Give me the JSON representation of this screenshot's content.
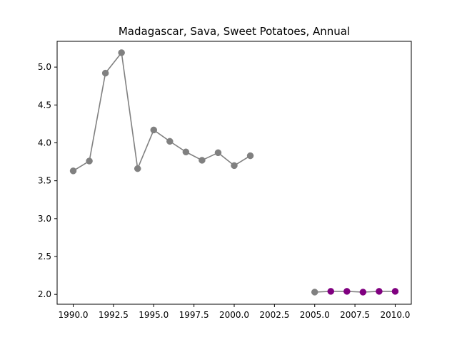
{
  "chart_data": {
    "type": "line",
    "title": "Madagascar, Sava, Sweet Potatoes, Annual",
    "xlabel": "",
    "ylabel": "",
    "xlim": [
      1989.0,
      2011.0
    ],
    "ylim": [
      1.87,
      5.34
    ],
    "xticks": [
      1990.0,
      1992.5,
      1995.0,
      1997.5,
      2000.0,
      2002.5,
      2005.0,
      2007.5,
      2010.0
    ],
    "xtick_labels": [
      "1990.0",
      "1992.5",
      "1995.0",
      "1997.5",
      "2000.0",
      "2002.5",
      "2005.0",
      "2007.5",
      "2010.0"
    ],
    "yticks": [
      2.0,
      2.5,
      3.0,
      3.5,
      4.0,
      4.5,
      5.0
    ],
    "ytick_labels": [
      "2.0",
      "2.5",
      "3.0",
      "3.5",
      "4.0",
      "4.5",
      "5.0"
    ],
    "grid": false,
    "line_color": "#808080",
    "series": [
      {
        "segments": [
          {
            "x": [
              1990,
              1991,
              1992,
              1993,
              1994,
              1995,
              1996,
              1997,
              1998,
              1999,
              2000,
              2001
            ],
            "y": [
              3.63,
              3.76,
              4.92,
              5.19,
              3.66,
              4.17,
              4.02,
              3.88,
              3.77,
              3.87,
              3.7,
              3.83
            ]
          },
          {
            "x": [
              2005,
              2006,
              2007,
              2008,
              2009,
              2010
            ],
            "y": [
              2.03,
              2.04,
              2.04,
              2.03,
              2.04,
              2.04
            ]
          }
        ],
        "marker_colors": {
          "1990": "#808080",
          "1991": "#808080",
          "1992": "#808080",
          "1993": "#808080",
          "1994": "#808080",
          "1995": "#808080",
          "1996": "#808080",
          "1997": "#808080",
          "1998": "#808080",
          "1999": "#808080",
          "2000": "#808080",
          "2001": "#808080",
          "2005": "#808080",
          "2006": "#800080",
          "2007": "#800080",
          "2008": "#800080",
          "2009": "#800080",
          "2010": "#800080"
        }
      }
    ]
  }
}
